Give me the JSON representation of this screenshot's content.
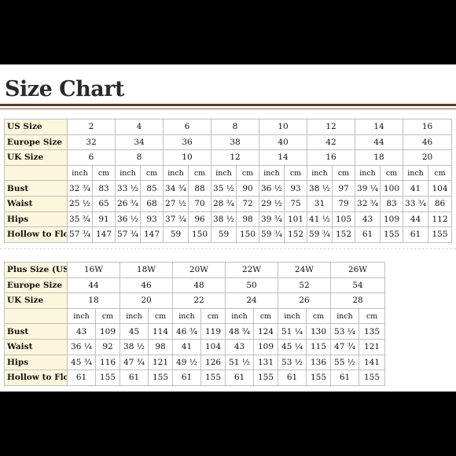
{
  "title": "Size Chart",
  "table1": {
    "sizes": [
      {
        "label": "US Size",
        "values": [
          "2",
          "4",
          "6",
          "8",
          "10",
          "12",
          "14",
          "16"
        ]
      },
      {
        "label": "Europe Size",
        "values": [
          "32",
          "34",
          "36",
          "38",
          "40",
          "42",
          "44",
          "46"
        ]
      },
      {
        "label": "UK Size",
        "values": [
          "6",
          "8",
          "10",
          "12",
          "14",
          "16",
          "18",
          "20"
        ]
      }
    ],
    "units": [
      "inch",
      "cm"
    ],
    "measurements": [
      {
        "label": "Bust",
        "values": [
          "32 ¾",
          "83",
          "33 ½",
          "85",
          "34 ¾",
          "88",
          "35 ½",
          "90",
          "36 ½",
          "93",
          "38 ½",
          "97",
          "39 ¼",
          "100",
          "41",
          "104"
        ]
      },
      {
        "label": "Waist",
        "values": [
          "25 ½",
          "65",
          "26 ¾",
          "68",
          "27 ½",
          "70",
          "28 ¾",
          "72",
          "29 ½",
          "75",
          "31",
          "79",
          "32 ¾",
          "83",
          "33 ¾",
          "86"
        ]
      },
      {
        "label": "Hips",
        "values": [
          "35 ¾",
          "91",
          "36 ½",
          "93",
          "37 ¾",
          "96",
          "38 ½",
          "98",
          "39 ¾",
          "101",
          "41 ½",
          "105",
          "43",
          "109",
          "44",
          "112"
        ]
      },
      {
        "label": "Hollow to Floor",
        "values": [
          "57 ¾",
          "147",
          "57 ¾",
          "147",
          "59",
          "150",
          "59",
          "150",
          "59 ¾",
          "152",
          "59 ¾",
          "152",
          "61",
          "155",
          "61",
          "155"
        ]
      }
    ]
  },
  "table2": {
    "sizes": [
      {
        "label": "Plus Size (US)",
        "values": [
          "16W",
          "18W",
          "20W",
          "22W",
          "24W",
          "26W"
        ]
      },
      {
        "label": "Europe Size",
        "values": [
          "44",
          "46",
          "48",
          "50",
          "52",
          "54"
        ]
      },
      {
        "label": "UK Size",
        "values": [
          "18",
          "20",
          "22",
          "24",
          "26",
          "28"
        ]
      }
    ],
    "units": [
      "inch",
      "cm"
    ],
    "measurements": [
      {
        "label": "Bust",
        "values": [
          "43",
          "109",
          "45",
          "114",
          "46 ¾",
          "119",
          "48 ¾",
          "124",
          "51 ¼",
          "130",
          "53 ¼",
          "135"
        ]
      },
      {
        "label": "Waist",
        "values": [
          "36 ¼",
          "92",
          "38 ½",
          "98",
          "41",
          "104",
          "43",
          "109",
          "45 ¼",
          "115",
          "47 ¾",
          "121"
        ]
      },
      {
        "label": "Hips",
        "values": [
          "45 ¾",
          "116",
          "47 ¾",
          "121",
          "49 ½",
          "126",
          "51 ½",
          "131",
          "53 ½",
          "136",
          "55 ½",
          "141"
        ]
      },
      {
        "label": "Hollow to Floor",
        "values": [
          "61",
          "155",
          "61",
          "155",
          "61",
          "155",
          "61",
          "155",
          "61",
          "155",
          "61",
          "155"
        ]
      }
    ]
  }
}
